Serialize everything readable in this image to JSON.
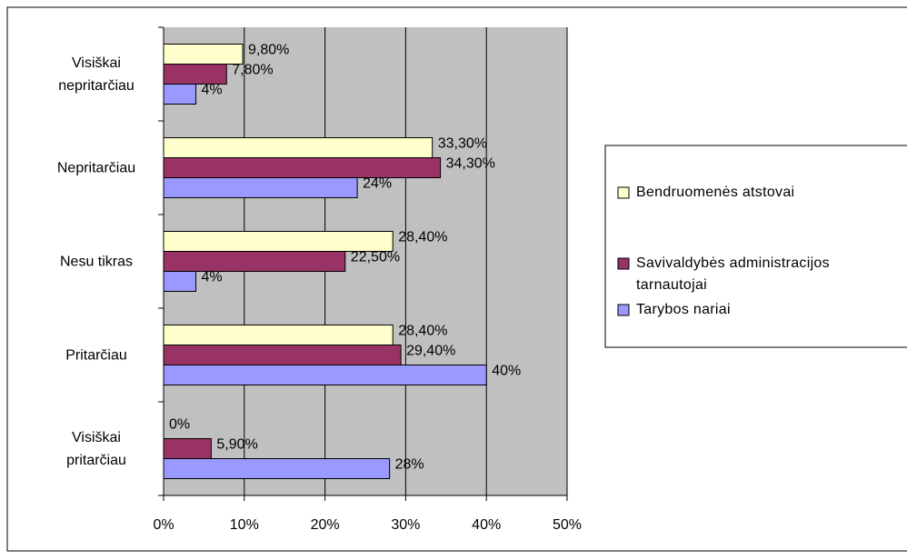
{
  "chart_data": {
    "type": "bar",
    "orientation": "horizontal",
    "categories": [
      "Visiškai nepritarčiau",
      "Nepritarčiau",
      "Nesu tikras",
      "Pritarčiau",
      "Visiškai pritarčiau"
    ],
    "series": [
      {
        "name": "Bendruomenės atstovai",
        "color": "#ffffcc",
        "values": [
          9.8,
          33.3,
          28.4,
          28.4,
          0
        ],
        "value_labels": [
          "9,80%",
          "33,30%",
          "28,40%",
          "28,40%",
          "0%"
        ]
      },
      {
        "name": "Savivaldybės administracijos tarnautojai",
        "color": "#993366",
        "values": [
          7.8,
          34.3,
          22.5,
          29.4,
          5.9
        ],
        "value_labels": [
          "7,80%",
          "34,30%",
          "22,50%",
          "29,40%",
          "5,90%"
        ]
      },
      {
        "name": "Tarybos nariai",
        "color": "#9999ff",
        "values": [
          4,
          24,
          4,
          40,
          28
        ],
        "value_labels": [
          "4%",
          "24%",
          "4%",
          "40%",
          "28%"
        ]
      }
    ],
    "xlim": [
      0,
      50
    ],
    "xticks": [
      {
        "value": 0,
        "label": "0%"
      },
      {
        "value": 10,
        "label": "10%"
      },
      {
        "value": 20,
        "label": "20%"
      },
      {
        "value": 30,
        "label": "30%"
      },
      {
        "value": 40,
        "label": "40%"
      },
      {
        "value": 50,
        "label": "50%"
      }
    ],
    "grid": true,
    "legend": "right"
  }
}
